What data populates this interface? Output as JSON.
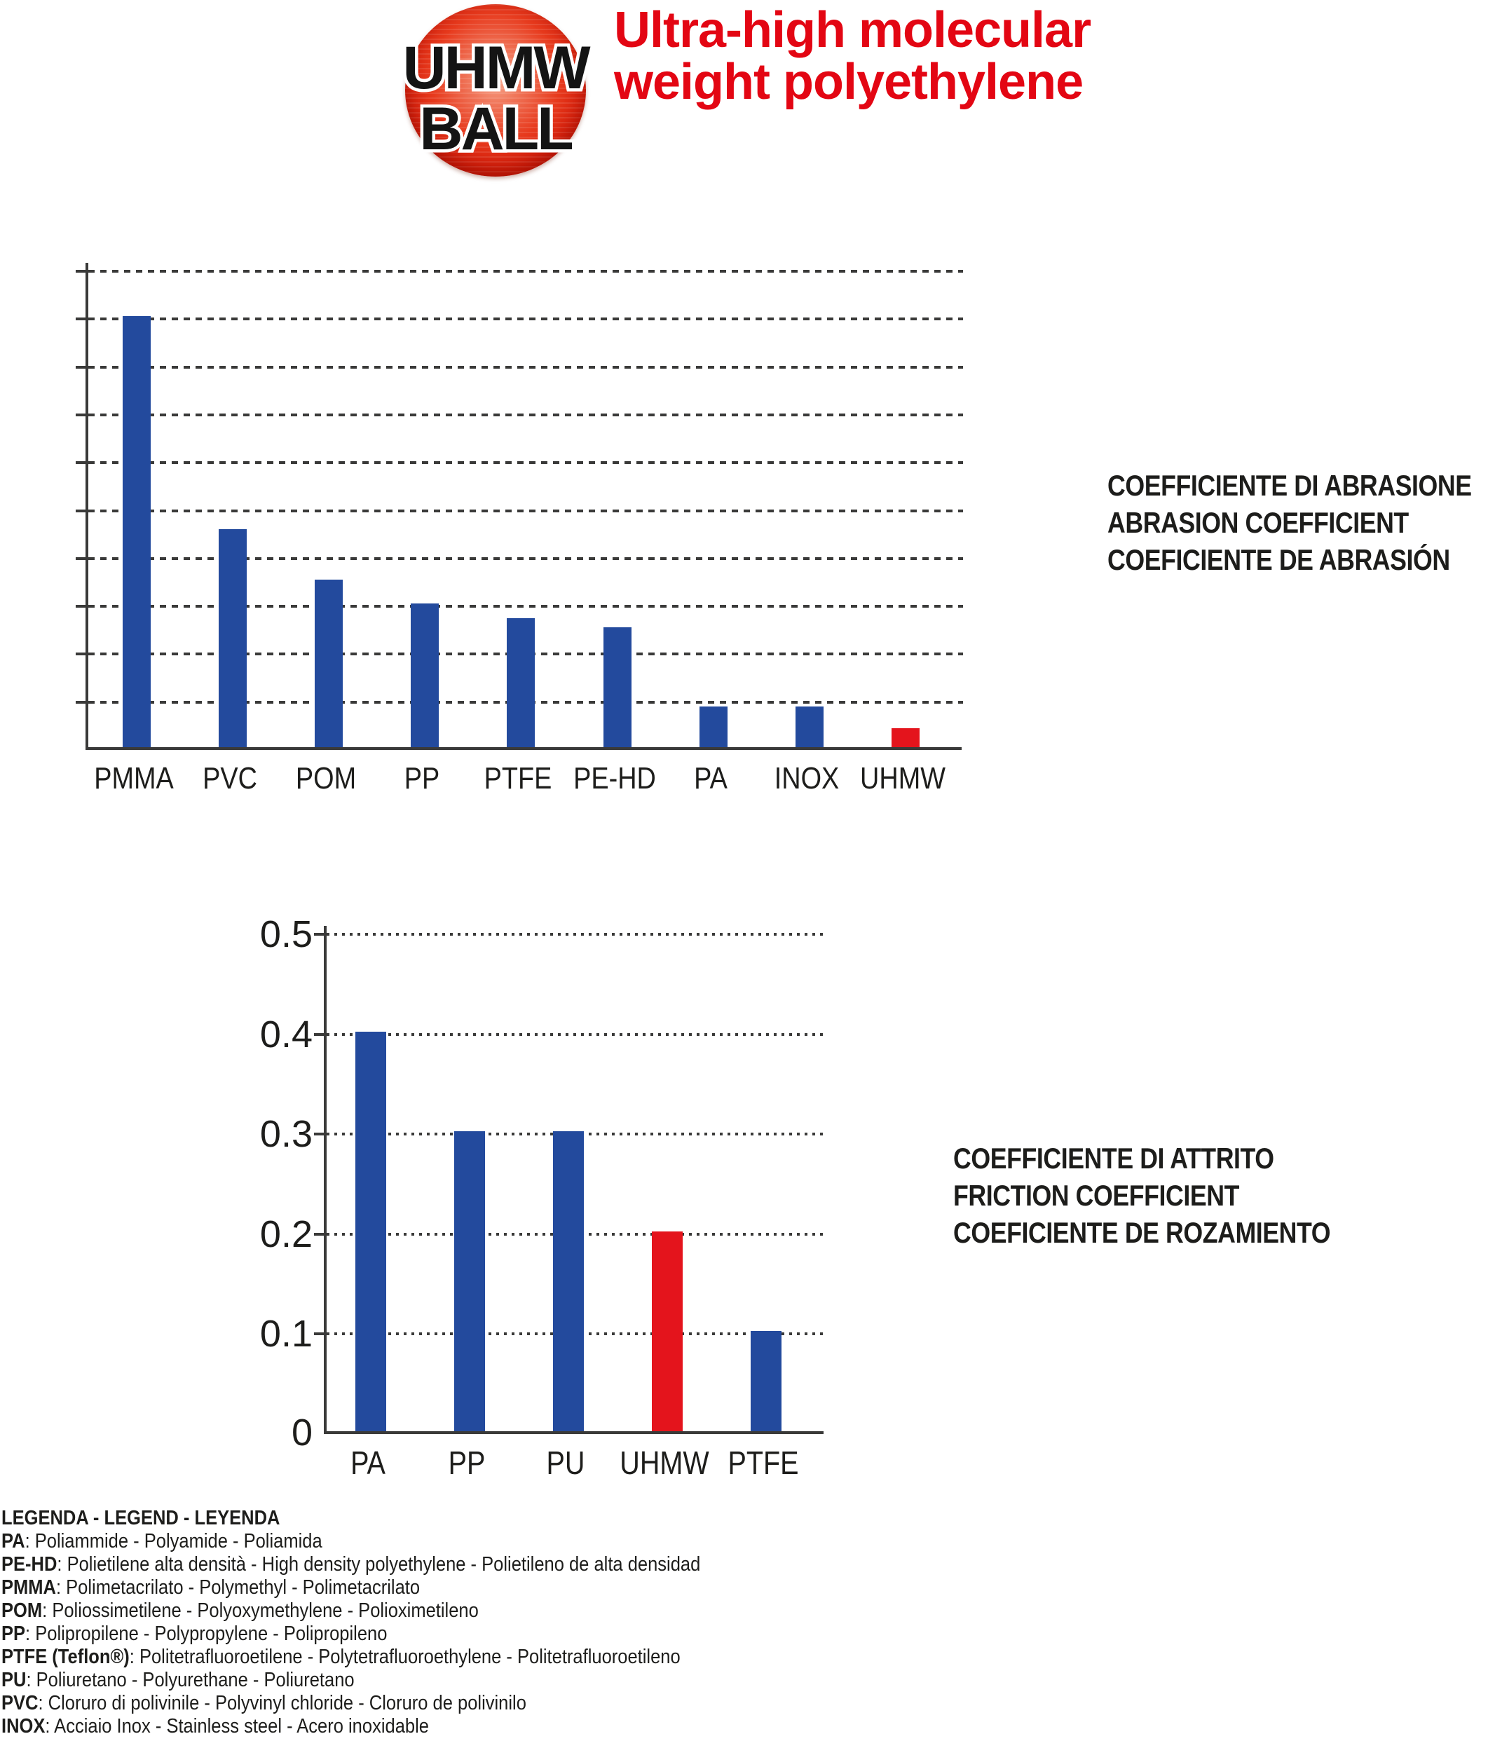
{
  "header": {
    "logo": {
      "line1": "UHMW",
      "line2": "BALL"
    },
    "title_line1": "Ultra-high molecular",
    "title_line2": "weight polyethylene"
  },
  "colors": {
    "bar_blue": "#234a9d",
    "bar_red": "#e4141c",
    "title_red": "#e30613",
    "text": "#1d1d1b",
    "axis": "#3a3a39"
  },
  "chart_data": [
    {
      "type": "bar",
      "title_lines": [
        "COEFFICIENTE DI ABRASIONE",
        "ABRASION COEFFICIENT",
        "COEFICIENTE DE ABRASIÓN"
      ],
      "categories": [
        "PMMA",
        "PVC",
        "POM",
        "PP",
        "PTFE",
        "PE-HD",
        "PA",
        "INOX",
        "UHMW"
      ],
      "values": [
        9,
        4.55,
        3.5,
        3,
        2.7,
        2.5,
        0.85,
        0.85,
        0.4
      ],
      "values_note": "relative height in gridline units; no numeric y-axis labels shown",
      "bar_colors": [
        "blue",
        "blue",
        "blue",
        "blue",
        "blue",
        "blue",
        "blue",
        "blue",
        "red"
      ],
      "highlight_category": "UHMW",
      "ylim": [
        0,
        10
      ],
      "gridlines": 10,
      "grid_style": "dashed horizontal",
      "yticklabels": [],
      "xlabel": "",
      "ylabel": ""
    },
    {
      "type": "bar",
      "title_lines": [
        "COEFFICIENTE DI ATTRITO",
        "FRICTION COEFFICIENT",
        "COEFICIENTE DE ROZAMIENTO"
      ],
      "categories": [
        "PA",
        "PP",
        "PU",
        "UHMW",
        "PTFE"
      ],
      "values": [
        0.4,
        0.3,
        0.3,
        0.2,
        0.1
      ],
      "bar_colors": [
        "blue",
        "blue",
        "blue",
        "red",
        "blue"
      ],
      "highlight_category": "UHMW",
      "ylim": [
        0,
        0.5
      ],
      "yticks": [
        0.5,
        0.4,
        0.3,
        0.2,
        0.1,
        0
      ],
      "grid_style": "dotted horizontal",
      "xlabel": "",
      "ylabel": ""
    }
  ],
  "legend": {
    "heading": "LEGENDA - LEGEND - LEYENDA",
    "entries": [
      {
        "term": "PA",
        "desc": "Poliammide - Polyamide - Poliamida"
      },
      {
        "term": "PE-HD",
        "desc": "Polietilene alta densità - High density polyethylene - Polietileno de alta densidad"
      },
      {
        "term": "PMMA",
        "desc": "Polimetacrilato - Polymethyl - Polimetacrilato"
      },
      {
        "term": "POM",
        "desc": "Poliossimetilene - Polyoxymethylene - Polioximetileno"
      },
      {
        "term": "PP",
        "desc": "Polipropilene - Polypropylene - Polipropileno"
      },
      {
        "term": "PTFE (Teflon®)",
        "desc": "Politetrafluoroetilene - Polytetrafluoroethylene - Politetrafluoroetileno"
      },
      {
        "term": "PU",
        "desc": "Poliuretano - Polyurethane - Poliuretano"
      },
      {
        "term": "PVC",
        "desc": "Cloruro di polivinile - Polyvinyl chloride - Cloruro de polivinilo"
      },
      {
        "term": "INOX",
        "desc": "Acciaio Inox - Stainless steel - Acero inoxidable"
      }
    ]
  }
}
